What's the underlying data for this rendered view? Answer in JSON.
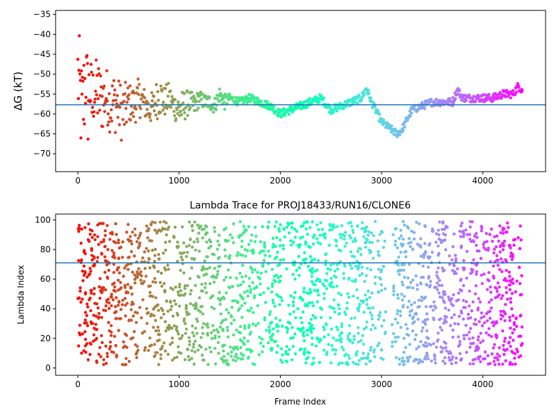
{
  "chart_data": [
    {
      "type": "scatter",
      "title": "",
      "xlabel": "",
      "ylabel": "ΔG (kT)",
      "xlim": [
        -220,
        4620
      ],
      "ylim": [
        -74.5,
        -34
      ],
      "xticks": [
        0,
        1000,
        2000,
        3000,
        4000
      ],
      "yticks": [
        -70,
        -65,
        -60,
        -55,
        -50,
        -45,
        -40,
        -35
      ],
      "reference_line": -57.7,
      "reference_line_color": "#1f77b4",
      "colormap": "rainbow",
      "color_by": "frame index (red = early, violet = late)",
      "grid": false,
      "series": [
        {
          "x": [
            0,
            20,
            40,
            60,
            80,
            100,
            120,
            140,
            160,
            200,
            240,
            280,
            320,
            360,
            400,
            450,
            500,
            550,
            600,
            650,
            700,
            750,
            800,
            850,
            900,
            950,
            1000,
            1050,
            1100,
            1150,
            1200,
            1250,
            1300,
            1350,
            1400,
            1450,
            1500,
            1600,
            1700,
            1800,
            1900,
            2000,
            2100,
            2200,
            2300,
            2400,
            2500,
            2600,
            2700,
            2800,
            2850,
            2900,
            3000,
            3100,
            3150,
            3200,
            3300,
            3400,
            3500,
            3600,
            3700,
            3750,
            3800,
            3900,
            4000,
            4100,
            4200,
            4300,
            4350,
            4390
          ],
          "y": [
            -50,
            -55,
            -60,
            -56,
            -50,
            -57,
            -53,
            -58,
            -54,
            -55,
            -57,
            -55,
            -58,
            -57,
            -58,
            -60,
            -57,
            -58,
            -56,
            -57,
            -59,
            -58,
            -55,
            -57,
            -56,
            -58,
            -59,
            -58,
            -57,
            -58,
            -56,
            -57,
            -57,
            -58,
            -55,
            -57,
            -56,
            -57,
            -56,
            -57,
            -58,
            -60,
            -59,
            -58,
            -57,
            -56,
            -59,
            -58,
            -57,
            -56,
            -53.5,
            -57,
            -62,
            -64,
            -65,
            -64,
            -59,
            -58,
            -57,
            -57,
            -57,
            -54,
            -56,
            -56,
            -56,
            -56,
            -55,
            -55,
            -53,
            -54
          ],
          "spread": [
            12,
            14,
            12,
            14,
            10,
            12,
            9,
            10,
            8,
            9,
            8,
            7,
            7,
            8,
            7,
            8,
            5,
            5,
            5,
            4,
            4,
            4,
            6,
            4,
            4,
            3,
            5,
            4,
            3,
            3,
            2,
            2,
            2,
            2,
            2,
            2,
            1,
            1,
            1,
            1,
            1,
            1,
            1,
            1,
            1,
            1,
            1,
            1,
            1,
            1,
            1,
            1,
            1,
            1,
            1,
            1,
            1,
            1,
            1,
            1,
            1,
            1,
            1,
            1,
            1,
            1,
            1,
            1,
            1,
            1
          ]
        }
      ]
    },
    {
      "type": "scatter",
      "title": "Lambda Trace for PROJ18433/RUN16/CLONE6",
      "xlabel": "Frame Index",
      "ylabel": "Lambda Index",
      "xlim": [
        -220,
        4620
      ],
      "ylim": [
        -5,
        104
      ],
      "xticks": [
        0,
        1000,
        2000,
        3000,
        4000
      ],
      "yticks": [
        0,
        20,
        40,
        60,
        80,
        100
      ],
      "reference_line": 71,
      "reference_line_color": "#1f77b4",
      "colormap": "rainbow",
      "color_by": "frame index (red = early, violet = late)",
      "grid": false,
      "x_range": [
        0,
        4390
      ],
      "y_range": [
        2,
        99
      ],
      "point_count": 2200,
      "gap_ranges": [
        [
          2940,
          2960
        ],
        [
          3040,
          3100
        ]
      ]
    }
  ]
}
